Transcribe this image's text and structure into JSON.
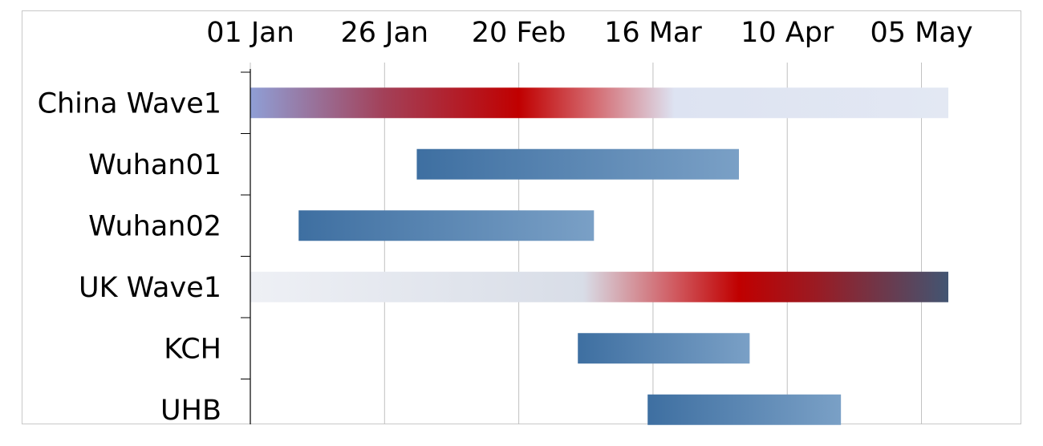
{
  "chart_data": {
    "type": "gantt",
    "title": "",
    "xlabel": "",
    "ylabel": "",
    "x_axis": {
      "scale": "date",
      "range": [
        "2020-01-01",
        "2020-05-10"
      ],
      "ticks": [
        {
          "date": "2020-01-01",
          "label": "01 Jan"
        },
        {
          "date": "2020-01-26",
          "label": "26 Jan"
        },
        {
          "date": "2020-02-20",
          "label": "20 Feb"
        },
        {
          "date": "2020-03-16",
          "label": "16 Mar"
        },
        {
          "date": "2020-04-10",
          "label": "10 Apr"
        },
        {
          "date": "2020-05-05",
          "label": "05 May"
        }
      ],
      "grid": true
    },
    "rows": [
      {
        "label": "China Wave1",
        "start": "2020-01-01",
        "end": "2020-05-10",
        "style": "epidemic-wave",
        "gradient": [
          {
            "date": "2020-01-01",
            "color": "#8f9fd6"
          },
          {
            "date": "2020-01-26",
            "color": "#a34058"
          },
          {
            "date": "2020-02-20",
            "color": "#c00000"
          },
          {
            "date": "2020-03-05",
            "color": "#d46a70"
          },
          {
            "date": "2020-03-20",
            "color": "#dde3f2"
          },
          {
            "date": "2020-05-10",
            "color": "#e3e8f3"
          }
        ]
      },
      {
        "label": "Wuhan01",
        "start": "2020-02-01",
        "end": "2020-04-01",
        "style": "sampling-period",
        "gradient": [
          {
            "date": "2020-02-01",
            "color": "#3e6fa1"
          },
          {
            "date": "2020-04-01",
            "color": "#7aa0c6"
          }
        ]
      },
      {
        "label": "Wuhan02",
        "start": "2020-01-10",
        "end": "2020-03-05",
        "style": "sampling-period",
        "gradient": [
          {
            "date": "2020-01-10",
            "color": "#3e6fa1"
          },
          {
            "date": "2020-03-05",
            "color": "#7aa0c6"
          }
        ]
      },
      {
        "label": "UK Wave1",
        "start": "2020-01-01",
        "end": "2020-05-10",
        "style": "epidemic-wave",
        "gradient": [
          {
            "date": "2020-01-01",
            "color": "#eef0f5"
          },
          {
            "date": "2020-03-03",
            "color": "#d8dde7"
          },
          {
            "date": "2020-03-20",
            "color": "#d05a60"
          },
          {
            "date": "2020-04-01",
            "color": "#c00000"
          },
          {
            "date": "2020-04-15",
            "color": "#9b1a22"
          },
          {
            "date": "2020-05-10",
            "color": "#425572"
          }
        ]
      },
      {
        "label": "KCH",
        "start": "2020-03-02",
        "end": "2020-04-03",
        "style": "sampling-period",
        "gradient": [
          {
            "date": "2020-03-02",
            "color": "#3e6fa1"
          },
          {
            "date": "2020-04-03",
            "color": "#7aa0c6"
          }
        ]
      },
      {
        "label": "UHB",
        "start": "2020-03-15",
        "end": "2020-04-20",
        "style": "sampling-period",
        "gradient": [
          {
            "date": "2020-03-15",
            "color": "#3e6fa1"
          },
          {
            "date": "2020-04-20",
            "color": "#7aa0c6"
          }
        ]
      }
    ],
    "colors": {
      "gridline": "#c0c0c0",
      "axis": "#000000",
      "frame": "#c8c8c8"
    }
  }
}
